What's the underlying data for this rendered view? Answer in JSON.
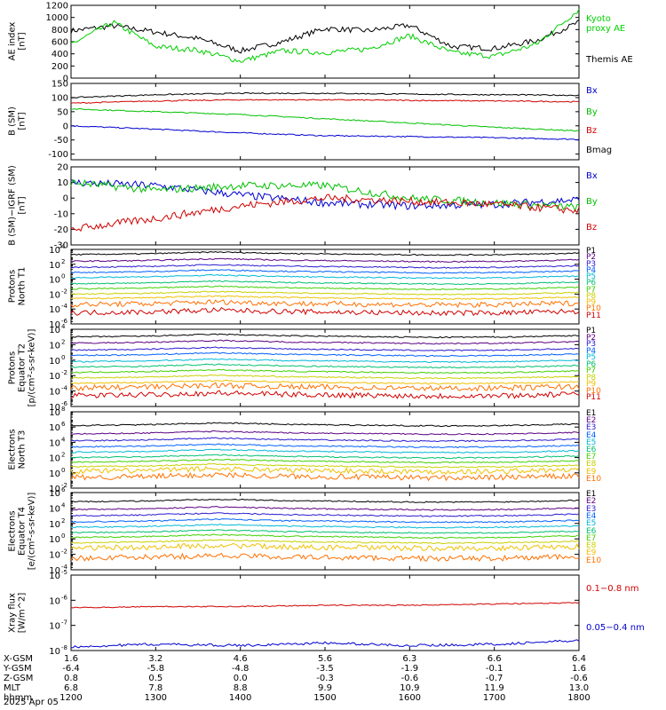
{
  "panel_titles": {
    "ae": [
      "AE index",
      "[nT]"
    ],
    "b": [
      "B (SM)",
      "[nT]"
    ],
    "db": [
      "B (SM)−IGRF (SM)",
      "[nT]"
    ],
    "p1": [
      "Protons",
      "North T1"
    ],
    "p2": [
      "Protons",
      "Equator T2",
      "[p/(cm²-s-sr-keV)]"
    ],
    "e3": [
      "Electrons",
      "North T3"
    ],
    "e4": [
      "Electrons",
      "Equator T4",
      "[e/(cm²-s-sr-keV)]"
    ],
    "x": [
      "Xray flux",
      "[W/m^2]"
    ]
  },
  "legends": {
    "ae": [
      {
        "text": "Kyoto",
        "color": "#00d000"
      },
      {
        "text": "proxy AE",
        "color": "#00d000"
      },
      {
        "text": "Themis AE",
        "color": "#000000"
      }
    ],
    "b": [
      {
        "text": "Bx",
        "color": "#0000d0"
      },
      {
        "text": "By",
        "color": "#00c000"
      },
      {
        "text": "Bz",
        "color": "#d00000"
      },
      {
        "text": "Bmag",
        "color": "#000000"
      }
    ],
    "db": [
      {
        "text": "Bx",
        "color": "#0000d0"
      },
      {
        "text": "By",
        "color": "#00c000"
      },
      {
        "text": "Bz",
        "color": "#d00000"
      }
    ],
    "x": [
      {
        "text": "0.1−0.8 nm",
        "color": "#d00000"
      },
      {
        "text": "0.05−0.4 nm",
        "color": "#0000d0"
      }
    ]
  },
  "proton_channels": [
    "P1",
    "P2",
    "P3",
    "P4",
    "P5",
    "P6",
    "P7",
    "P8",
    "P9",
    "P10",
    "P11"
  ],
  "electron_channels": [
    "E1",
    "E2",
    "E3",
    "E4",
    "E5",
    "E6",
    "E7",
    "E8",
    "E9",
    "E10"
  ],
  "channel_colors": [
    "#000000",
    "#5a0080",
    "#2a1ad0",
    "#0060ff",
    "#00b8d8",
    "#00c070",
    "#40d000",
    "#c8d000",
    "#f0c000",
    "#ff7000",
    "#d00000"
  ],
  "bottom_rows": [
    {
      "label": "X-GSM",
      "values": [
        "1.6",
        "3.2",
        "4.6",
        "5.6",
        "6.3",
        "6.6",
        "6.4"
      ]
    },
    {
      "label": "Y-GSM",
      "values": [
        "-6.4",
        "-5.8",
        "-4.8",
        "-3.5",
        "-1.9",
        "-0.1",
        "1.6"
      ]
    },
    {
      "label": "Z-GSM",
      "values": [
        "0.8",
        "0.5",
        "0.0",
        "-0.3",
        "-0.6",
        "-0.7",
        "-0.6"
      ]
    },
    {
      "label": "MLT",
      "values": [
        "6.8",
        "7.8",
        "8.8",
        "9.9",
        "10.9",
        "11.9",
        "13.0"
      ]
    },
    {
      "label": "hhmm",
      "values": [
        "1200",
        "1300",
        "1400",
        "1500",
        "1600",
        "1700",
        "1800"
      ]
    }
  ],
  "date_label": "2025 Apr 05",
  "chart_data": [
    {
      "type": "line",
      "id": "ae",
      "ylabel": "AE index [nT]",
      "ylim": [
        0,
        1200
      ],
      "yticks": [
        0,
        200,
        400,
        600,
        800,
        1000,
        1200
      ],
      "x": [
        "1200",
        "1230",
        "1300",
        "1330",
        "1400",
        "1430",
        "1500",
        "1530",
        "1600",
        "1630",
        "1700",
        "1730",
        "1800"
      ],
      "series": [
        {
          "name": "Themis AE",
          "color": "#000000",
          "values": [
            780,
            860,
            760,
            650,
            450,
            600,
            820,
            780,
            870,
            520,
            490,
            620,
            920
          ]
        },
        {
          "name": "Kyoto proxy AE",
          "color": "#00d000",
          "values": [
            560,
            920,
            520,
            460,
            280,
            450,
            420,
            480,
            700,
            420,
            360,
            560,
            1130
          ]
        }
      ]
    },
    {
      "type": "line",
      "id": "b",
      "ylabel": "B (SM) [nT]",
      "ylim": [
        -120,
        150
      ],
      "yticks": [
        -100,
        -50,
        0,
        50,
        100,
        150
      ],
      "x": [
        "1200",
        "1300",
        "1400",
        "1500",
        "1600",
        "1700",
        "1800"
      ],
      "series": [
        {
          "name": "Bx",
          "color": "#0000d0",
          "values": [
            0,
            -12,
            -25,
            -35,
            -38,
            -42,
            -48
          ]
        },
        {
          "name": "By",
          "color": "#00c000",
          "values": [
            60,
            50,
            40,
            25,
            10,
            -5,
            -18
          ]
        },
        {
          "name": "Bz",
          "color": "#d00000",
          "values": [
            80,
            88,
            92,
            92,
            90,
            88,
            85
          ]
        },
        {
          "name": "Bmag",
          "color": "#000000",
          "values": [
            100,
            110,
            115,
            115,
            112,
            110,
            108
          ]
        }
      ]
    },
    {
      "type": "line",
      "id": "db",
      "ylabel": "B (SM)-IGRF (SM) [nT]",
      "ylim": [
        -30,
        20
      ],
      "yticks": [
        -30,
        -20,
        -10,
        0,
        10,
        20
      ],
      "x": [
        "1200",
        "1300",
        "1400",
        "1500",
        "1600",
        "1700",
        "1800"
      ],
      "series": [
        {
          "name": "Bx",
          "color": "#0000d0",
          "values": [
            10,
            8,
            2,
            -3,
            -5,
            -4,
            -1
          ]
        },
        {
          "name": "By",
          "color": "#00c000",
          "values": [
            10,
            5,
            8,
            8,
            0,
            -3,
            -6
          ]
        },
        {
          "name": "Bz",
          "color": "#d00000",
          "values": [
            -20,
            -13,
            -5,
            0,
            -2,
            -4,
            -8
          ]
        }
      ]
    },
    {
      "type": "line",
      "id": "p1",
      "ylabel": "Protons North T1",
      "scale": "log",
      "ylim": [
        -6,
        4
      ],
      "ytick_exponents": [
        -6,
        -4,
        -2,
        0,
        2,
        4
      ],
      "levels_log10": [
        3.3,
        2.4,
        1.6,
        0.9,
        0.2,
        -0.6,
        -1.3,
        -2.0,
        -2.6,
        -3.4,
        -4.5
      ]
    },
    {
      "type": "line",
      "id": "p2",
      "ylabel": "Protons Equator T2 [p/(cm2-s-sr-keV)]",
      "scale": "log",
      "ylim": [
        -6,
        4
      ],
      "ytick_exponents": [
        -6,
        -4,
        -2,
        0,
        2,
        4
      ],
      "levels_log10": [
        3.0,
        2.2,
        1.3,
        0.6,
        -0.2,
        -0.9,
        -1.6,
        -2.3,
        -3.0,
        -3.6,
        -4.6
      ]
    },
    {
      "type": "line",
      "id": "e3",
      "ylabel": "Electrons North T3",
      "scale": "log",
      "ylim": [
        -2,
        8
      ],
      "ytick_exponents": [
        -2,
        0,
        2,
        4,
        6,
        8
      ],
      "levels_log10": [
        6.2,
        5.1,
        4.2,
        3.4,
        2.7,
        2.0,
        1.4,
        0.8,
        0.2,
        -0.6
      ]
    },
    {
      "type": "line",
      "id": "e4",
      "ylabel": "Electrons Equator T4 [e/(cm2-s-sr-keV)]",
      "scale": "log",
      "ylim": [
        -4,
        6
      ],
      "ytick_exponents": [
        -4,
        -2,
        0,
        2,
        4,
        6
      ],
      "levels_log10": [
        4.8,
        3.8,
        3.0,
        2.2,
        1.5,
        0.8,
        0.2,
        -0.5,
        -1.2,
        -2.5
      ]
    },
    {
      "type": "line",
      "id": "x",
      "ylabel": "Xray flux [W/m^2]",
      "scale": "log",
      "ylim": [
        -8,
        -5
      ],
      "ytick_exponents": [
        -8,
        -7,
        -6,
        -5
      ],
      "x": [
        "1200",
        "1300",
        "1400",
        "1500",
        "1600",
        "1700",
        "1800"
      ],
      "series": [
        {
          "name": "0.1-0.8 nm",
          "color": "#d00000",
          "values_log10": [
            -6.3,
            -6.25,
            -6.25,
            -6.2,
            -6.2,
            -6.15,
            -6.1
          ]
        },
        {
          "name": "0.05-0.4 nm",
          "color": "#0000d0",
          "values_log10": [
            -7.85,
            -7.75,
            -7.8,
            -7.7,
            -7.8,
            -7.75,
            -7.6
          ]
        }
      ]
    }
  ]
}
